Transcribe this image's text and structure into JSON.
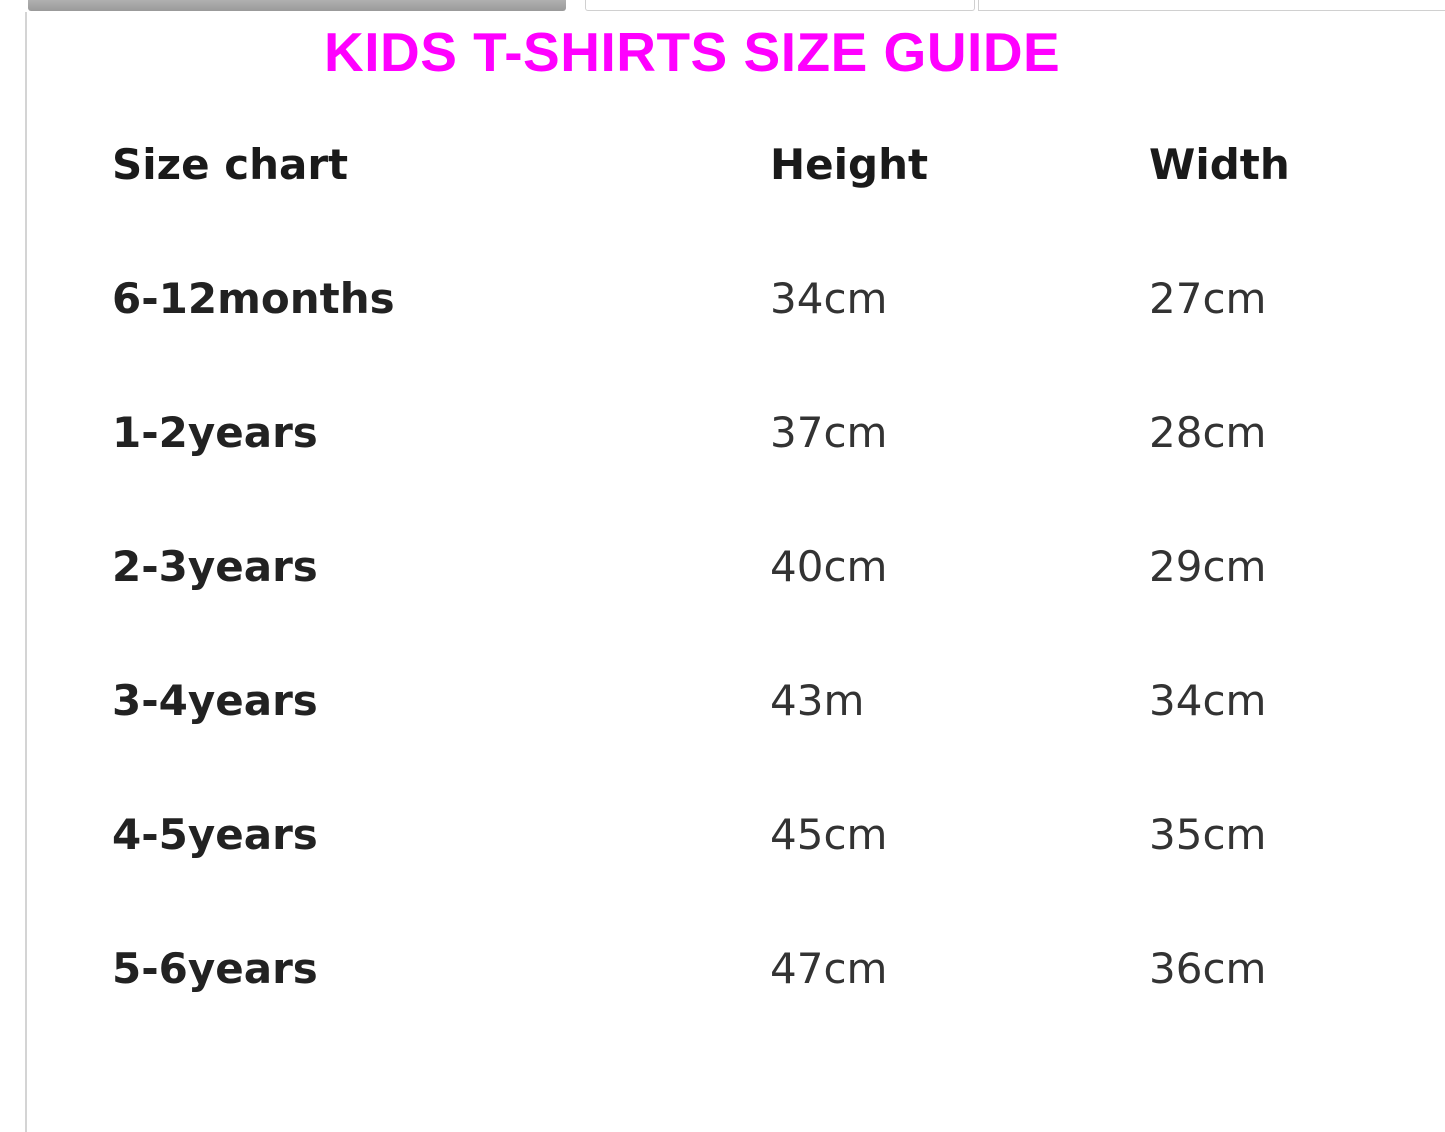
{
  "title": "KIDS T-SHIRTS SIZE GUIDE",
  "title_color": "#ff00ff",
  "table": {
    "headers": [
      "Size chart",
      "Height",
      "Width"
    ],
    "rows": [
      [
        "6-12months",
        "34cm",
        "27cm"
      ],
      [
        "1-2years",
        "37cm",
        "28cm"
      ],
      [
        "2-3years",
        "40cm",
        "29cm"
      ],
      [
        "3-4years",
        "43m",
        "34cm"
      ],
      [
        "4-5years",
        "45cm",
        "35cm"
      ],
      [
        "5-6years",
        "47cm",
        "36cm"
      ]
    ]
  }
}
